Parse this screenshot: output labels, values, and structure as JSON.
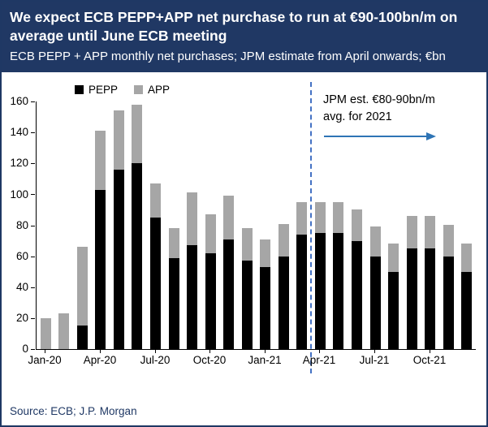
{
  "header": {
    "title": "We expect ECB PEPP+APP net purchase to run at €90-100bn/m on average until June ECB meeting",
    "subtitle": "ECB PEPP + APP monthly net purchases; JPM estimate from April onwards; €bn"
  },
  "annotation": {
    "line1": "JPM est. €80-90bn/m",
    "line2": "avg. for 2021"
  },
  "source": "Source: ECB; J.P. Morgan",
  "colors": {
    "header_bg": "#203864",
    "pepp": "#000000",
    "app": "#a6a6a6",
    "divider": "#4472c4",
    "arrow": "#2e74b5",
    "source_text": "#1f3864"
  },
  "chart_data": {
    "type": "bar",
    "stacked": true,
    "title": "ECB PEPP + APP monthly net purchases",
    "ylabel": "€bn",
    "ylim": [
      0,
      160
    ],
    "y_ticks": [
      0,
      20,
      40,
      60,
      80,
      100,
      120,
      140,
      160
    ],
    "grid": false,
    "legend_position": "top-left",
    "categories": [
      "Jan-20",
      "Feb-20",
      "Mar-20",
      "Apr-20",
      "May-20",
      "Jun-20",
      "Jul-20",
      "Aug-20",
      "Sep-20",
      "Oct-20",
      "Nov-20",
      "Dec-20",
      "Jan-21",
      "Feb-21",
      "Mar-21",
      "Apr-21",
      "May-21",
      "Jun-21",
      "Jul-21",
      "Aug-21",
      "Sep-21",
      "Oct-21",
      "Nov-21",
      "Dec-21"
    ],
    "x_tick_labels": [
      "Jan-20",
      "Apr-20",
      "Jul-20",
      "Oct-20",
      "Jan-21",
      "Apr-21",
      "Jul-21",
      "Oct-21"
    ],
    "series": [
      {
        "name": "PEPP",
        "color": "#000000",
        "values": [
          0,
          0,
          15,
          103,
          116,
          120,
          85,
          59,
          67,
          62,
          71,
          57,
          53,
          60,
          74,
          75,
          75,
          70,
          60,
          50,
          65,
          65,
          60,
          50
        ]
      },
      {
        "name": "APP",
        "color": "#a6a6a6",
        "values": [
          20,
          23,
          51,
          38,
          38,
          38,
          22,
          19,
          34,
          25,
          28,
          21,
          18,
          21,
          21,
          20,
          20,
          20,
          19,
          18,
          21,
          21,
          20,
          18
        ]
      }
    ],
    "divider_at_category": "Apr-21",
    "divider_note": "JPM estimates from April 2021 onwards"
  }
}
